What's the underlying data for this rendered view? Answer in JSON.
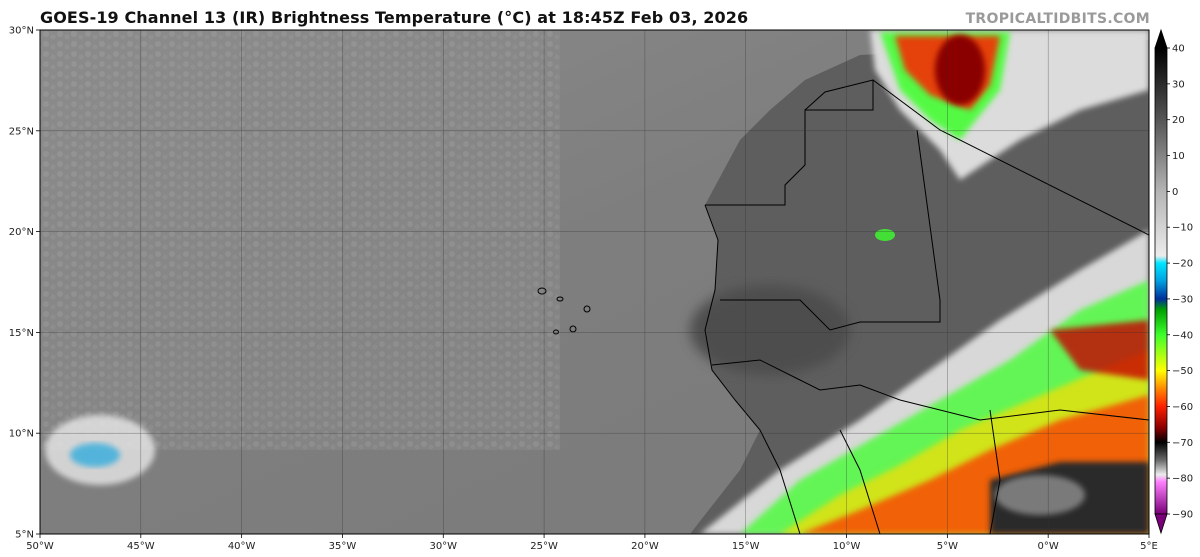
{
  "header": {
    "title": "GOES-19 Channel 13 (IR) Brightness Temperature (°C) at 18:45Z Feb 03, 2026",
    "credit": "TROPICALTIDBITS.COM"
  },
  "map": {
    "lon_range": [
      -50,
      5
    ],
    "lat_range": [
      5,
      30
    ],
    "lon_ticks": [
      {
        "value": -50,
        "label": "50°W"
      },
      {
        "value": -45,
        "label": "45°W"
      },
      {
        "value": -40,
        "label": "40°W"
      },
      {
        "value": -35,
        "label": "35°W"
      },
      {
        "value": -30,
        "label": "30°W"
      },
      {
        "value": -25,
        "label": "25°W"
      },
      {
        "value": -20,
        "label": "20°W"
      },
      {
        "value": -15,
        "label": "15°W"
      },
      {
        "value": -10,
        "label": "10°W"
      },
      {
        "value": -5,
        "label": "5°W"
      },
      {
        "value": 0,
        "label": "0°W"
      },
      {
        "value": 5,
        "label": "5°E"
      }
    ],
    "lat_ticks": [
      {
        "value": 30,
        "label": "30°N"
      },
      {
        "value": 25,
        "label": "25°N"
      },
      {
        "value": 20,
        "label": "20°N"
      },
      {
        "value": 15,
        "label": "15°N"
      },
      {
        "value": 10,
        "label": "10°N"
      },
      {
        "value": 5,
        "label": "5°N"
      }
    ],
    "grid": true
  },
  "colorbar": {
    "range": [
      -90,
      40
    ],
    "ticks": [
      {
        "value": 40,
        "label": "40"
      },
      {
        "value": 30,
        "label": "30"
      },
      {
        "value": 20,
        "label": "20"
      },
      {
        "value": 10,
        "label": "10"
      },
      {
        "value": 0,
        "label": "0"
      },
      {
        "value": -10,
        "label": "−10"
      },
      {
        "value": -20,
        "label": "−20"
      },
      {
        "value": -30,
        "label": "−30"
      },
      {
        "value": -40,
        "label": "−40"
      },
      {
        "value": -50,
        "label": "−50"
      },
      {
        "value": -60,
        "label": "−60"
      },
      {
        "value": -70,
        "label": "−70"
      },
      {
        "value": -80,
        "label": "−80"
      },
      {
        "value": -90,
        "label": "−90"
      }
    ],
    "stops": [
      {
        "value": 40,
        "color": "#000000"
      },
      {
        "value": 20,
        "color": "#555555"
      },
      {
        "value": 0,
        "color": "#b4b4b4"
      },
      {
        "value": -18,
        "color": "#ececec"
      },
      {
        "value": -20,
        "color": "#00e6ff"
      },
      {
        "value": -25,
        "color": "#00a0e0"
      },
      {
        "value": -30,
        "color": "#002f9a"
      },
      {
        "value": -33,
        "color": "#00a000"
      },
      {
        "value": -40,
        "color": "#3cff2c"
      },
      {
        "value": -50,
        "color": "#ffff00"
      },
      {
        "value": -55,
        "color": "#ff8a00"
      },
      {
        "value": -60,
        "color": "#ff2000"
      },
      {
        "value": -66,
        "color": "#8a0000"
      },
      {
        "value": -70,
        "color": "#000000"
      },
      {
        "value": -75,
        "color": "#6a6a6a"
      },
      {
        "value": -79,
        "color": "#ececec"
      },
      {
        "value": -81,
        "color": "#ff80ff"
      },
      {
        "value": -90,
        "color": "#7a007a"
      }
    ]
  }
}
